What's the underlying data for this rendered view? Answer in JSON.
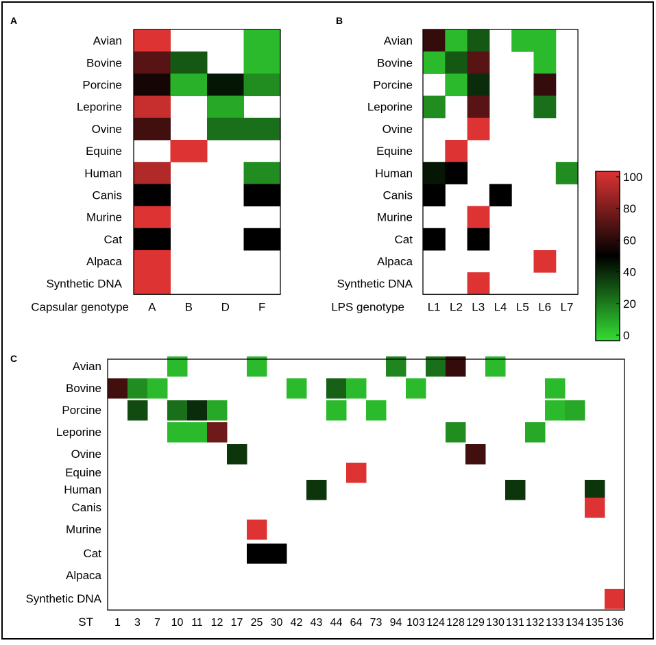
{
  "figure": {
    "colors": {
      "low": "#33dd33",
      "mid": "#000000",
      "high": "#dd3333",
      "frame": "#000000",
      "background": "#ffffff"
    }
  },
  "chart_data": [
    {
      "type": "heatmap",
      "panel": "A",
      "xlabel": "Capsular genotype",
      "columns": [
        "A",
        "B",
        "D",
        "F"
      ],
      "rows": [
        "Avian",
        "Bovine",
        "Porcine",
        "Leporine",
        "Ovine",
        "Equine",
        "Human",
        "Canis",
        "Murine",
        "Cat",
        "Alpaca",
        "Synthetic DNA"
      ],
      "values": [
        [
          100,
          null,
          null,
          8
        ],
        [
          70,
          30,
          null,
          8
        ],
        [
          55,
          10,
          45,
          18
        ],
        [
          95,
          null,
          12,
          null
        ],
        [
          65,
          null,
          25,
          25
        ],
        [
          null,
          100,
          null,
          null
        ],
        [
          90,
          null,
          null,
          18
        ],
        [
          50,
          null,
          null,
          50
        ],
        [
          100,
          null,
          null,
          null
        ],
        [
          50,
          null,
          null,
          50
        ],
        [
          100,
          null,
          null,
          null
        ],
        [
          100,
          null,
          null,
          null
        ]
      ]
    },
    {
      "type": "heatmap",
      "panel": "B",
      "xlabel": "LPS genotype",
      "columns": [
        "L1",
        "L2",
        "L3",
        "L4",
        "L5",
        "L6",
        "L7"
      ],
      "rows": [
        "Avian",
        "Bovine",
        "Porcine",
        "Leporine",
        "Ovine",
        "Equine",
        "Human",
        "Canis",
        "Murine",
        "Cat",
        "Alpaca",
        "Synthetic DNA"
      ],
      "values": [
        [
          62,
          8,
          30,
          null,
          8,
          8,
          null
        ],
        [
          8,
          30,
          70,
          null,
          null,
          8,
          null
        ],
        [
          null,
          8,
          40,
          null,
          null,
          62,
          null
        ],
        [
          18,
          null,
          70,
          null,
          null,
          25,
          null
        ],
        [
          null,
          null,
          100,
          null,
          null,
          null,
          null
        ],
        [
          null,
          100,
          null,
          null,
          null,
          null,
          null
        ],
        [
          45,
          50,
          null,
          null,
          null,
          null,
          18
        ],
        [
          50,
          null,
          null,
          50,
          null,
          null,
          null
        ],
        [
          null,
          null,
          100,
          null,
          null,
          null,
          null
        ],
        [
          50,
          null,
          50,
          null,
          null,
          null,
          null
        ],
        [
          null,
          null,
          null,
          null,
          null,
          100,
          null
        ],
        [
          null,
          null,
          100,
          null,
          null,
          null,
          null
        ]
      ]
    },
    {
      "type": "heatmap",
      "panel": "C",
      "xlabel": "ST",
      "columns": [
        "1",
        "3",
        "7",
        "10",
        "11",
        "12",
        "17",
        "25",
        "30",
        "42",
        "43",
        "44",
        "64",
        "73",
        "94",
        "103",
        "124",
        "128",
        "129",
        "130",
        "131",
        "132",
        "133",
        "134",
        "135",
        "136"
      ],
      "rows": [
        "Avian",
        "Bovine",
        "Porcine",
        "Leporine",
        "Ovine",
        "Equine",
        "Human",
        "Canis",
        "Murine",
        "Cat",
        "Alpaca",
        "Synthetic DNA"
      ],
      "cells": [
        {
          "row": "Avian",
          "col": "10",
          "value": 8
        },
        {
          "row": "Avian",
          "col": "25",
          "value": 8
        },
        {
          "row": "Avian",
          "col": "94",
          "value": 20
        },
        {
          "row": "Avian",
          "col": "124",
          "value": 25
        },
        {
          "row": "Avian",
          "col": "128",
          "value": 62
        },
        {
          "row": "Avian",
          "col": "130",
          "value": 8
        },
        {
          "row": "Bovine",
          "col": "1",
          "value": 65
        },
        {
          "row": "Bovine",
          "col": "3",
          "value": 18
        },
        {
          "row": "Bovine",
          "col": "7",
          "value": 8
        },
        {
          "row": "Bovine",
          "col": "42",
          "value": 8
        },
        {
          "row": "Bovine",
          "col": "44",
          "value": 28
        },
        {
          "row": "Bovine",
          "col": "64",
          "value": 8
        },
        {
          "row": "Bovine",
          "col": "103",
          "value": 8
        },
        {
          "row": "Bovine",
          "col": "133",
          "value": 8
        },
        {
          "row": "Porcine",
          "col": "3",
          "value": 33
        },
        {
          "row": "Porcine",
          "col": "10",
          "value": 25
        },
        {
          "row": "Porcine",
          "col": "11",
          "value": 40
        },
        {
          "row": "Porcine",
          "col": "12",
          "value": 12
        },
        {
          "row": "Porcine",
          "col": "44",
          "value": 8
        },
        {
          "row": "Porcine",
          "col": "73",
          "value": 8
        },
        {
          "row": "Porcine",
          "col": "133",
          "value": 8
        },
        {
          "row": "Porcine",
          "col": "134",
          "value": 12
        },
        {
          "row": "Leporine",
          "col": "10",
          "value": 8
        },
        {
          "row": "Leporine",
          "col": "11",
          "value": 8
        },
        {
          "row": "Leporine",
          "col": "12",
          "value": 75
        },
        {
          "row": "Leporine",
          "col": "128",
          "value": 18
        },
        {
          "row": "Leporine",
          "col": "132",
          "value": 12
        },
        {
          "row": "Ovine",
          "col": "17",
          "value": 38
        },
        {
          "row": "Ovine",
          "col": "129",
          "value": 65
        },
        {
          "row": "Equine",
          "col": "64",
          "value": 100
        },
        {
          "row": "Human",
          "col": "43",
          "value": 38
        },
        {
          "row": "Human",
          "col": "131",
          "value": 38
        },
        {
          "row": "Human",
          "col": "135",
          "value": 38
        },
        {
          "row": "Canis",
          "col": "135",
          "value": 100
        },
        {
          "row": "Murine",
          "col": "25",
          "value": 100
        },
        {
          "row": "Cat",
          "col": "25",
          "value": 50
        },
        {
          "row": "Cat",
          "col": "30",
          "value": 50
        },
        {
          "row": "Synthetic DNA",
          "col": "136",
          "value": 100
        }
      ]
    },
    {
      "type": "colorbar",
      "ticks": [
        "100",
        "80",
        "60",
        "40",
        "20",
        "0"
      ],
      "range": [
        0,
        100
      ]
    }
  ]
}
